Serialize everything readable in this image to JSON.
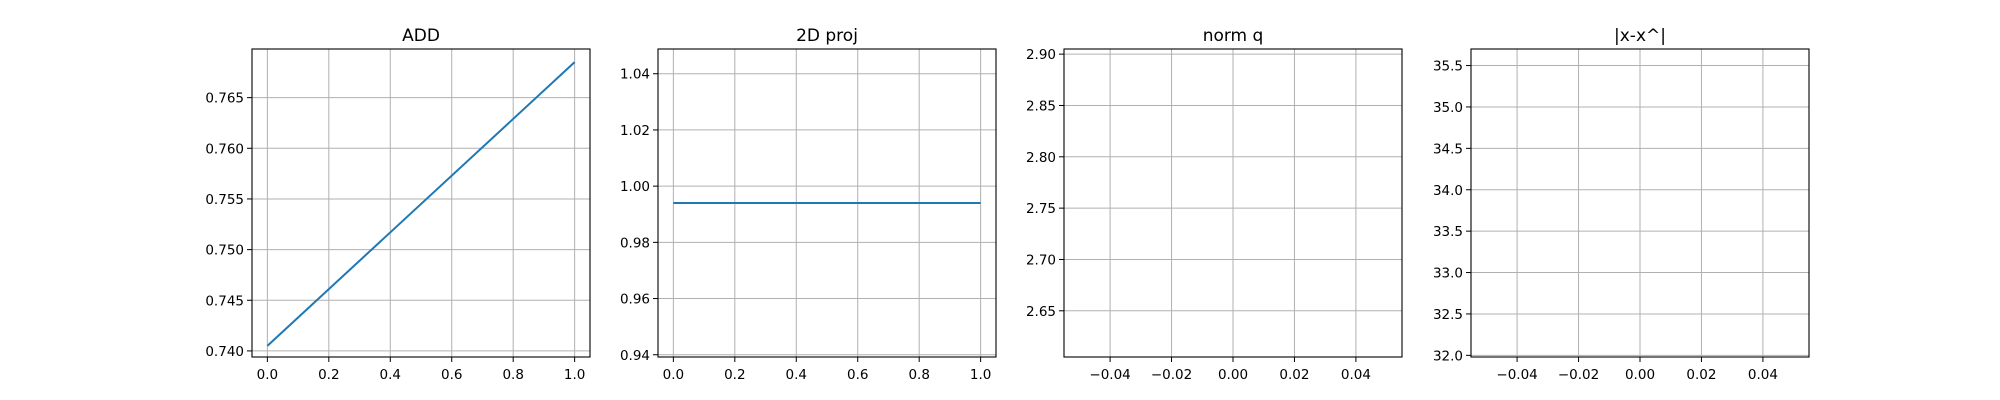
{
  "chart_data": [
    {
      "type": "line",
      "title": "ADD",
      "xlabel": "",
      "ylabel": "",
      "xlim": [
        -0.05,
        1.05
      ],
      "ylim": [
        0.7394,
        0.7698
      ],
      "xticks": [
        0.0,
        0.2,
        0.4,
        0.6,
        0.8,
        1.0
      ],
      "xtick_labels": [
        "0.0",
        "0.2",
        "0.4",
        "0.6",
        "0.8",
        "1.0"
      ],
      "yticks": [
        0.74,
        0.745,
        0.75,
        0.755,
        0.76,
        0.765
      ],
      "ytick_labels": [
        "0.740",
        "0.745",
        "0.750",
        "0.755",
        "0.760",
        "0.765"
      ],
      "grid": true,
      "series": [
        {
          "x": [
            0.0,
            1.0
          ],
          "y": [
            0.7405,
            0.7685
          ],
          "color": "#1f77b4"
        }
      ]
    },
    {
      "type": "line",
      "title": "2D proj",
      "xlabel": "",
      "ylabel": "",
      "xlim": [
        -0.05,
        1.05
      ],
      "ylim": [
        0.9392,
        1.0488
      ],
      "xticks": [
        0.0,
        0.2,
        0.4,
        0.6,
        0.8,
        1.0
      ],
      "xtick_labels": [
        "0.0",
        "0.2",
        "0.4",
        "0.6",
        "0.8",
        "1.0"
      ],
      "yticks": [
        0.94,
        0.96,
        0.98,
        1.0,
        1.02,
        1.04
      ],
      "ytick_labels": [
        "0.94",
        "0.96",
        "0.98",
        "1.00",
        "1.02",
        "1.04"
      ],
      "grid": true,
      "series": [
        {
          "x": [
            0.0,
            1.0
          ],
          "y": [
            0.994,
            0.994
          ],
          "color": "#1f77b4"
        }
      ]
    },
    {
      "type": "line",
      "title": "norm q",
      "xlabel": "",
      "ylabel": "",
      "xlim": [
        -0.055,
        0.055
      ],
      "ylim": [
        2.605,
        2.905
      ],
      "xticks": [
        -0.04,
        -0.02,
        0.0,
        0.02,
        0.04
      ],
      "xtick_labels": [
        "−0.04",
        "−0.02",
        "0.00",
        "0.02",
        "0.04"
      ],
      "yticks": [
        2.65,
        2.7,
        2.75,
        2.8,
        2.85,
        2.9
      ],
      "ytick_labels": [
        "2.65",
        "2.70",
        "2.75",
        "2.80",
        "2.85",
        "2.90"
      ],
      "grid": true,
      "series": []
    },
    {
      "type": "line",
      "title": "|x-x^|",
      "xlabel": "",
      "ylabel": "",
      "xlim": [
        -0.055,
        0.055
      ],
      "ylim": [
        31.98,
        35.7
      ],
      "xticks": [
        -0.04,
        -0.02,
        0.0,
        0.02,
        0.04
      ],
      "xtick_labels": [
        "−0.04",
        "−0.02",
        "0.00",
        "0.02",
        "0.04"
      ],
      "yticks": [
        32.0,
        32.5,
        33.0,
        33.5,
        34.0,
        34.5,
        35.0,
        35.5
      ],
      "ytick_labels": [
        "32.0",
        "32.5",
        "33.0",
        "33.5",
        "34.0",
        "34.5",
        "35.0",
        "35.5"
      ],
      "grid": true,
      "series": []
    }
  ]
}
